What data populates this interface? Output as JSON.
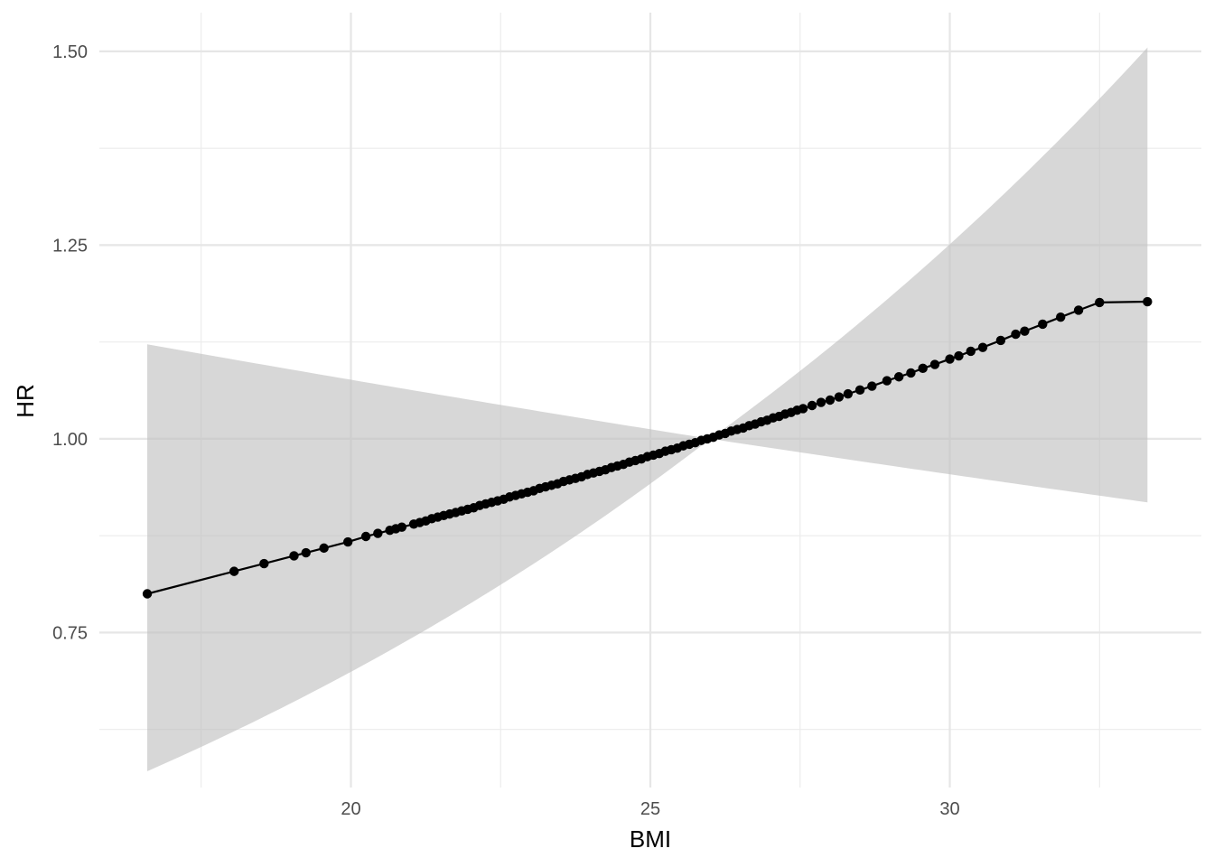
{
  "chart_data": {
    "type": "line",
    "title": "",
    "xlabel": "BMI",
    "ylabel": "HR",
    "xlim": [
      15.8,
      34.2
    ],
    "ylim": [
      0.55,
      1.55
    ],
    "x_ticks": [
      20,
      25,
      30
    ],
    "x_tick_labels": [
      "20",
      "25",
      "30"
    ],
    "x_minor_ticks": [
      17.5,
      22.5,
      27.5,
      32.5
    ],
    "y_ticks": [
      0.75,
      1.0,
      1.25,
      1.5
    ],
    "y_tick_labels": [
      "0.75",
      "1.00",
      "1.25",
      "1.50"
    ],
    "y_minor_ticks": [
      0.625,
      0.875,
      1.125,
      1.375
    ],
    "grid": true,
    "legend": "none",
    "reference_x": 26.0,
    "hr_range": [
      0.8,
      1.177
    ],
    "ci_upper_range": [
      1.122,
      1.505
    ],
    "ci_lower_range": [
      0.571,
      0.918
    ],
    "x": [
      16.6,
      18.05,
      18.55,
      19.05,
      19.25,
      19.55,
      19.95,
      20.25,
      20.45,
      20.65,
      20.75,
      20.85,
      21.05,
      21.15,
      21.25,
      21.35,
      21.45,
      21.55,
      21.65,
      21.75,
      21.85,
      21.95,
      22.05,
      22.15,
      22.25,
      22.35,
      22.45,
      22.55,
      22.65,
      22.75,
      22.85,
      22.95,
      23.05,
      23.15,
      23.25,
      23.35,
      23.45,
      23.55,
      23.65,
      23.75,
      23.85,
      23.95,
      24.05,
      24.15,
      24.25,
      24.35,
      24.45,
      24.55,
      24.65,
      24.75,
      24.85,
      24.95,
      25.05,
      25.15,
      25.25,
      25.35,
      25.45,
      25.55,
      25.65,
      25.75,
      25.85,
      25.95,
      26.05,
      26.15,
      26.25,
      26.35,
      26.45,
      26.55,
      26.65,
      26.75,
      26.85,
      26.95,
      27.05,
      27.15,
      27.25,
      27.35,
      27.45,
      27.55,
      27.7,
      27.85,
      28.0,
      28.15,
      28.3,
      28.5,
      28.7,
      28.95,
      29.15,
      29.35,
      29.55,
      29.75,
      30.0,
      30.15,
      30.35,
      30.55,
      30.85,
      31.1,
      31.25,
      31.55,
      31.85,
      32.15,
      32.5,
      33.3
    ],
    "values": [
      0.8,
      0.829,
      0.839,
      0.849,
      0.853,
      0.859,
      0.867,
      0.874,
      0.878,
      0.882,
      0.884,
      0.886,
      0.89,
      0.892,
      0.894,
      0.897,
      0.899,
      0.901,
      0.903,
      0.905,
      0.907,
      0.909,
      0.911,
      0.914,
      0.916,
      0.918,
      0.92,
      0.922,
      0.925,
      0.927,
      0.929,
      0.931,
      0.933,
      0.936,
      0.938,
      0.94,
      0.942,
      0.945,
      0.947,
      0.949,
      0.951,
      0.954,
      0.956,
      0.958,
      0.96,
      0.963,
      0.965,
      0.967,
      0.97,
      0.972,
      0.974,
      0.977,
      0.979,
      0.981,
      0.984,
      0.986,
      0.988,
      0.991,
      0.993,
      0.995,
      0.998,
      1.0,
      1.002,
      1.005,
      1.007,
      1.01,
      1.012,
      1.014,
      1.017,
      1.019,
      1.022,
      1.024,
      1.027,
      1.029,
      1.032,
      1.034,
      1.037,
      1.039,
      1.043,
      1.047,
      1.05,
      1.054,
      1.058,
      1.063,
      1.068,
      1.075,
      1.08,
      1.085,
      1.091,
      1.096,
      1.103,
      1.107,
      1.113,
      1.118,
      1.127,
      1.135,
      1.139,
      1.148,
      1.157,
      1.166,
      1.176,
      1.177
    ]
  }
}
